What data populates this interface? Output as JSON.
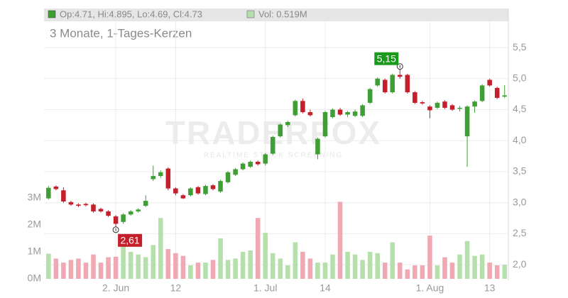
{
  "chart_data": {
    "type": "candlestick",
    "header": {
      "ohlc": "Op:4.71, Hi:4.895, Lo:4.69, Cl:4.73",
      "volume": "Vol: 0.519M"
    },
    "subtitle": "3 Monate, 1-Tages-Kerzen",
    "watermark": {
      "brand": "TRADERFOX",
      "tagline": "REALTIME STOCK SCREENING"
    },
    "up_color": "#3f9f35",
    "down_color": "#c41f2a",
    "volume_up_color": "#b5dfab",
    "volume_down_color": "#f0a9b2",
    "open": [
      3.07,
      3.26,
      3.2,
      3.01,
      2.97,
      2.98,
      2.97,
      2.9,
      2.86,
      2.78,
      2.69,
      2.81,
      2.86,
      2.95,
      3.38,
      3.43,
      3.55,
      3.23,
      3.12,
      3.12,
      3.25,
      3.14,
      3.28,
      3.18,
      3.33,
      3.45,
      3.54,
      3.58,
      3.66,
      3.63,
      3.79,
      4.07,
      4.25,
      4.41,
      4.64,
      4.46,
      3.78,
      4.07,
      4.38,
      4.5,
      4.42,
      4.4,
      4.4,
      4.61,
      4.89,
      4.98,
      4.78,
      5.06,
      5.06,
      4.78,
      4.62,
      4.55,
      4.53,
      4.63,
      4.57,
      4.52,
      4.07,
      4.55,
      4.64,
      4.98,
      4.85,
      4.71
    ],
    "high": [
      3.27,
      3.28,
      3.25,
      3.03,
      2.99,
      3.0,
      2.99,
      2.92,
      2.88,
      2.8,
      2.83,
      2.88,
      2.91,
      3.12,
      3.6,
      3.52,
      3.57,
      3.25,
      3.14,
      3.25,
      3.27,
      3.29,
      3.3,
      3.37,
      3.51,
      3.56,
      3.65,
      3.68,
      3.68,
      3.8,
      4.08,
      4.28,
      4.32,
      4.66,
      4.68,
      4.5,
      4.05,
      4.48,
      4.52,
      4.53,
      4.48,
      4.5,
      4.59,
      4.85,
      5.02,
      5.0,
      5.08,
      5.15,
      5.08,
      4.8,
      4.64,
      4.57,
      4.63,
      4.65,
      4.59,
      4.56,
      4.57,
      4.65,
      4.91,
      5.0,
      4.87,
      4.895
    ],
    "low": [
      3.05,
      3.2,
      3.0,
      2.95,
      2.93,
      2.94,
      2.84,
      2.84,
      2.77,
      2.61,
      2.66,
      2.79,
      2.84,
      2.93,
      3.35,
      3.4,
      3.2,
      3.12,
      3.06,
      3.1,
      3.13,
      3.12,
      3.2,
      3.16,
      3.31,
      3.43,
      3.52,
      3.56,
      3.6,
      3.6,
      3.77,
      4.05,
      4.22,
      4.39,
      4.44,
      4.39,
      3.7,
      4.05,
      4.36,
      4.4,
      4.38,
      4.38,
      4.38,
      4.59,
      4.87,
      4.76,
      4.76,
      5.0,
      4.76,
      4.59,
      4.58,
      4.36,
      4.51,
      4.51,
      4.48,
      4.47,
      3.58,
      4.45,
      4.62,
      4.87,
      4.67,
      4.69
    ],
    "close": [
      3.24,
      3.22,
      3.02,
      2.97,
      2.95,
      2.96,
      2.86,
      2.86,
      2.79,
      2.66,
      2.81,
      2.86,
      2.89,
      3.03,
      3.43,
      3.49,
      3.23,
      3.15,
      3.07,
      3.23,
      3.15,
      3.27,
      3.22,
      3.35,
      3.49,
      3.54,
      3.63,
      3.66,
      3.62,
      3.78,
      4.06,
      4.26,
      4.3,
      4.64,
      4.46,
      4.41,
      4.03,
      4.46,
      4.5,
      4.42,
      4.46,
      4.47,
      4.57,
      4.83,
      5.0,
      4.78,
      5.06,
      5.03,
      4.78,
      4.61,
      4.6,
      4.49,
      4.61,
      4.53,
      4.5,
      4.53,
      4.55,
      4.63,
      4.89,
      4.89,
      4.69,
      4.73
    ],
    "volume": [
      0.93,
      0.75,
      0.6,
      0.7,
      0.75,
      0.6,
      0.9,
      0.6,
      0.8,
      0.82,
      1.2,
      1.0,
      0.9,
      0.8,
      1.25,
      2.25,
      1.1,
      0.95,
      0.85,
      0.5,
      0.6,
      0.6,
      0.7,
      1.5,
      0.7,
      0.75,
      1.0,
      1.05,
      2.25,
      1.7,
      0.95,
      0.75,
      0.5,
      1.35,
      1.0,
      0.75,
      0.6,
      0.6,
      0.9,
      2.85,
      1.0,
      0.9,
      0.7,
      1.0,
      0.95,
      0.6,
      1.35,
      0.6,
      0.35,
      0.5,
      0.5,
      1.6,
      0.5,
      0.8,
      0.6,
      0.9,
      1.4,
      0.85,
      0.9,
      0.6,
      0.5,
      0.519
    ],
    "xlim": [
      -0.6,
      61.5
    ],
    "xticks": [
      {
        "value": 9,
        "label": "2. Jun"
      },
      {
        "value": 17,
        "label": "12"
      },
      {
        "value": 29,
        "label": "1. Jul"
      },
      {
        "value": 37,
        "label": "14"
      },
      {
        "value": 51,
        "label": "1. Aug"
      },
      {
        "value": 59,
        "label": "13"
      }
    ],
    "ylim": [
      1.75,
      6.13
    ],
    "yticks": [
      {
        "value": 2.0,
        "label": "2,0"
      },
      {
        "value": 2.5,
        "label": "2,5"
      },
      {
        "value": 3.0,
        "label": "3,0"
      },
      {
        "value": 3.5,
        "label": "3,5"
      },
      {
        "value": 4.0,
        "label": "4,0"
      },
      {
        "value": 4.5,
        "label": "4,5"
      },
      {
        "value": 5.0,
        "label": "5,0"
      },
      {
        "value": 5.5,
        "label": "5,5"
      }
    ],
    "y2lim": [
      0,
      10
    ],
    "y2ticks": [
      {
        "value": 0,
        "label": "0M"
      },
      {
        "value": 1,
        "label": "1M"
      },
      {
        "value": 2,
        "label": "2M"
      },
      {
        "value": 3,
        "label": "3M"
      }
    ],
    "grid": true,
    "annotations": [
      {
        "text": "5,15",
        "index": 47,
        "value": 5.15,
        "color": "#1a9a1a",
        "side": "above"
      },
      {
        "text": "2,61",
        "index": 9,
        "value": 2.61,
        "color": "#c41f2a",
        "side": "below"
      }
    ]
  }
}
